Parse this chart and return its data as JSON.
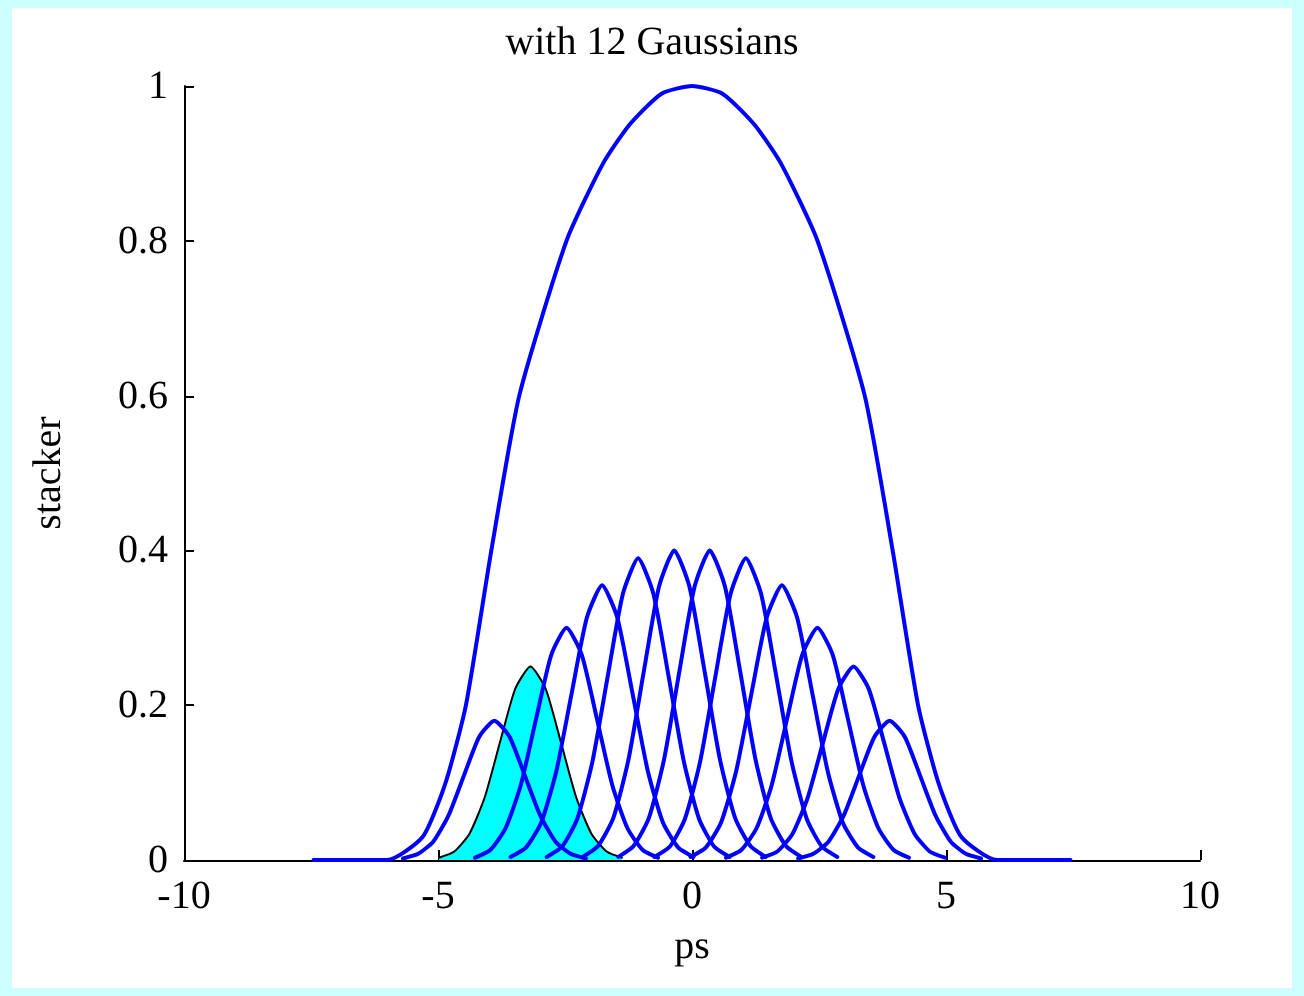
{
  "chart_data": {
    "type": "line",
    "title": "with 12 Gaussians",
    "xlabel": "ps",
    "ylabel": "stacker",
    "xlim": [
      -10,
      10
    ],
    "xticks": [
      -10,
      -5,
      0,
      5,
      10
    ],
    "ylim": [
      0,
      1
    ],
    "yticks": [
      0,
      0.2,
      0.4,
      0.6,
      0.8,
      1
    ],
    "marker": "none",
    "line_style": "solid",
    "series": [
      {
        "color": "#0000ff",
        "x": [
          -7.45,
          -6,
          -5.3,
          -4.85,
          -4.45,
          -3.95,
          -3.4,
          -2.47,
          -1.75,
          -1.23,
          -0.6,
          0,
          0.6,
          1.23,
          1.75,
          2.47,
          3.4,
          3.95,
          4.45,
          4.85,
          5.3,
          6,
          7.45
        ],
        "values": [
          0,
          0,
          0.03,
          0.1,
          0.2,
          0.4,
          0.6,
          0.8,
          0.9,
          0.95,
          0.99,
          1,
          0.99,
          0.95,
          0.9,
          0.8,
          0.6,
          0.4,
          0.2,
          0.1,
          0.03,
          0,
          0
        ]
      },
      {
        "color": "#0000ff",
        "x": [
          -5.69,
          -5.39,
          -5.09,
          -4.79,
          -4.49,
          -4.19,
          -3.89,
          -3.59,
          -3.29,
          -2.99,
          -2.69,
          -2.39,
          -2.09
        ],
        "values": [
          0.002,
          0.008,
          0.024,
          0.058,
          0.109,
          0.159,
          0.18,
          0.159,
          0.109,
          0.058,
          0.024,
          0.008,
          0.002
        ]
      },
      {
        "type": "area",
        "color": "#00ffff",
        "x": [
          -4.98,
          -4.68,
          -4.38,
          -4.08,
          -3.78,
          -3.48,
          -3.18,
          -2.88,
          -2.58,
          -2.28,
          -1.98,
          -1.68,
          -1.38
        ],
        "values": [
          0.003,
          0.011,
          0.034,
          0.081,
          0.152,
          0.221,
          0.25,
          0.221,
          0.152,
          0.081,
          0.034,
          0.011,
          0.003
        ]
      },
      {
        "color": "#0000ff",
        "x": [
          -4.27,
          -3.97,
          -3.67,
          -3.37,
          -3.07,
          -2.77,
          -2.47,
          -2.17,
          -1.87,
          -1.57,
          -1.27,
          -0.97,
          -0.67
        ],
        "values": [
          0.003,
          0.013,
          0.041,
          0.097,
          0.182,
          0.265,
          0.3,
          0.265,
          0.182,
          0.097,
          0.041,
          0.013,
          0.003
        ]
      },
      {
        "color": "#0000ff",
        "x": [
          -3.57,
          -3.27,
          -2.97,
          -2.67,
          -2.37,
          -2.07,
          -1.77,
          -1.47,
          -1.17,
          -0.87,
          -0.57,
          -0.27,
          0.03
        ],
        "values": [
          0.004,
          0.016,
          0.048,
          0.115,
          0.215,
          0.313,
          0.355,
          0.313,
          0.215,
          0.115,
          0.048,
          0.016,
          0.004
        ]
      },
      {
        "color": "#0000ff",
        "x": [
          -2.86,
          -2.56,
          -2.26,
          -1.96,
          -1.66,
          -1.36,
          -1.06,
          -0.76,
          -0.46,
          -0.16,
          0.14,
          0.44,
          0.74
        ],
        "values": [
          0.004,
          0.017,
          0.053,
          0.127,
          0.237,
          0.344,
          0.39,
          0.344,
          0.237,
          0.127,
          0.053,
          0.017,
          0.004
        ]
      },
      {
        "color": "#0000ff",
        "x": [
          -2.15,
          -1.85,
          -1.55,
          -1.25,
          -0.95,
          -0.65,
          -0.35,
          -0.05,
          0.25,
          0.55,
          0.85,
          1.15,
          1.45
        ],
        "values": [
          0.004,
          0.018,
          0.054,
          0.13,
          0.243,
          0.353,
          0.4,
          0.353,
          0.243,
          0.13,
          0.054,
          0.018,
          0.004
        ]
      },
      {
        "color": "#0000ff",
        "x": [
          -1.45,
          -1.15,
          -0.85,
          -0.55,
          -0.25,
          0.05,
          0.35,
          0.65,
          0.95,
          1.25,
          1.55,
          1.85,
          2.15
        ],
        "values": [
          0.004,
          0.018,
          0.054,
          0.13,
          0.243,
          0.353,
          0.4,
          0.353,
          0.243,
          0.13,
          0.054,
          0.018,
          0.004
        ]
      },
      {
        "color": "#0000ff",
        "x": [
          -0.74,
          -0.44,
          -0.14,
          0.16,
          0.46,
          0.76,
          1.06,
          1.36,
          1.66,
          1.96,
          2.26,
          2.56,
          2.86
        ],
        "values": [
          0.004,
          0.017,
          0.053,
          0.127,
          0.237,
          0.344,
          0.39,
          0.344,
          0.237,
          0.127,
          0.053,
          0.017,
          0.004
        ]
      },
      {
        "color": "#0000ff",
        "x": [
          -0.03,
          0.27,
          0.57,
          0.87,
          1.17,
          1.47,
          1.77,
          2.07,
          2.37,
          2.67,
          2.97,
          3.27,
          3.57
        ],
        "values": [
          0.004,
          0.016,
          0.048,
          0.115,
          0.215,
          0.313,
          0.355,
          0.313,
          0.215,
          0.115,
          0.048,
          0.016,
          0.004
        ]
      },
      {
        "color": "#0000ff",
        "x": [
          0.67,
          0.97,
          1.27,
          1.57,
          1.87,
          2.17,
          2.47,
          2.77,
          3.07,
          3.37,
          3.67,
          3.97,
          4.27
        ],
        "values": [
          0.003,
          0.013,
          0.041,
          0.097,
          0.182,
          0.265,
          0.3,
          0.265,
          0.182,
          0.097,
          0.041,
          0.013,
          0.003
        ]
      },
      {
        "color": "#0000ff",
        "x": [
          1.38,
          1.68,
          1.98,
          2.28,
          2.58,
          2.88,
          3.18,
          3.48,
          3.78,
          4.08,
          4.38,
          4.68,
          4.98
        ],
        "values": [
          0.003,
          0.011,
          0.034,
          0.081,
          0.152,
          0.221,
          0.25,
          0.221,
          0.152,
          0.081,
          0.034,
          0.011,
          0.003
        ]
      },
      {
        "color": "#0000ff",
        "x": [
          2.09,
          2.39,
          2.69,
          2.99,
          3.29,
          3.59,
          3.89,
          4.19,
          4.49,
          4.79,
          5.09,
          5.39,
          5.69
        ],
        "values": [
          0.002,
          0.008,
          0.024,
          0.058,
          0.109,
          0.159,
          0.18,
          0.159,
          0.109,
          0.058,
          0.024,
          0.008,
          0.002
        ]
      }
    ]
  }
}
